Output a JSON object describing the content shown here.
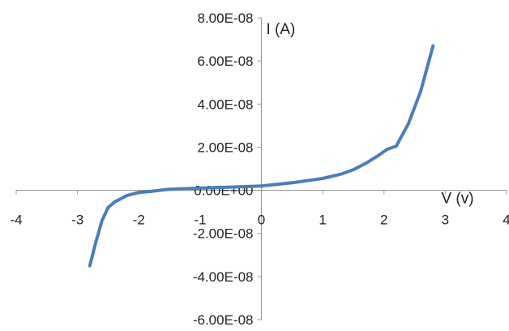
{
  "chart_data": {
    "type": "line",
    "title": "",
    "xlabel": "V (v)",
    "ylabel": "I (A)",
    "xlim": [
      -4,
      4
    ],
    "ylim": [
      -6e-08,
      8e-08
    ],
    "x_ticks": [
      "-4",
      "-3",
      "-2",
      "-1",
      "0",
      "1",
      "2",
      "3",
      "4"
    ],
    "y_ticks": [
      "8.00E-08",
      "6.00E-08",
      "4.00E-08",
      "2.00E-08",
      "0.00E+00",
      "-2.00E-08",
      "-4.00E-08",
      "-6.00E-08"
    ],
    "grid": false,
    "series": [
      {
        "color": "#4a7ebb",
        "points": [
          {
            "x": -2.8,
            "y": -3.5e-08
          },
          {
            "x": -2.7,
            "y": -2.4e-08
          },
          {
            "x": -2.6,
            "y": -1.4e-08
          },
          {
            "x": -2.5,
            "y": -8e-09
          },
          {
            "x": -2.4,
            "y": -5.5e-09
          },
          {
            "x": -2.2,
            "y": -2.5e-09
          },
          {
            "x": -2.0,
            "y": -1e-09
          },
          {
            "x": -1.8,
            "y": -5e-10
          },
          {
            "x": -1.5,
            "y": 5e-10
          },
          {
            "x": -1.0,
            "y": 1e-09
          },
          {
            "x": -0.5,
            "y": 1.5e-09
          },
          {
            "x": 0.0,
            "y": 2e-09
          },
          {
            "x": 0.5,
            "y": 3.5e-09
          },
          {
            "x": 1.0,
            "y": 5.5e-09
          },
          {
            "x": 1.3,
            "y": 7.5e-09
          },
          {
            "x": 1.5,
            "y": 9.5e-09
          },
          {
            "x": 1.7,
            "y": 1.25e-08
          },
          {
            "x": 1.9,
            "y": 1.6e-08
          },
          {
            "x": 2.05,
            "y": 1.9e-08
          },
          {
            "x": 2.2,
            "y": 2.05e-08
          },
          {
            "x": 2.4,
            "y": 3.1e-08
          },
          {
            "x": 2.6,
            "y": 4.6e-08
          },
          {
            "x": 2.8,
            "y": 6.7e-08
          }
        ]
      }
    ]
  }
}
